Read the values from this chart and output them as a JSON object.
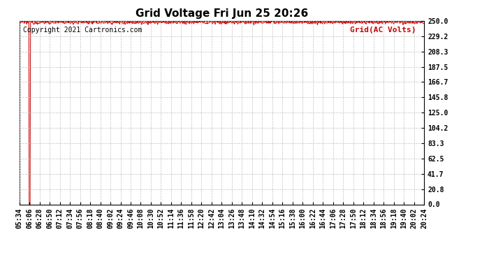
{
  "title": "Grid Voltage Fri Jun 25 20:26",
  "legend_label": "Grid(AC Volts)",
  "copyright": "Copyright 2021 Cartronics.com",
  "line_color": "#cc0000",
  "legend_color": "#cc0000",
  "bg_color": "#ffffff",
  "grid_color": "#bbbbbb",
  "ylim": [
    0.0,
    250.0
  ],
  "yticks": [
    0.0,
    20.8,
    41.7,
    62.5,
    83.3,
    104.2,
    125.0,
    145.8,
    166.7,
    187.5,
    208.3,
    229.2,
    250.0
  ],
  "ytick_labels": [
    "0.0",
    "20.8",
    "41.7",
    "62.5",
    "83.3",
    "104.2",
    "125.0",
    "145.8",
    "166.7",
    "187.5",
    "208.3",
    "229.2",
    "250.0"
  ],
  "xtick_labels": [
    "05:34",
    "06:06",
    "06:28",
    "06:50",
    "07:12",
    "07:34",
    "07:56",
    "08:18",
    "08:40",
    "09:02",
    "09:24",
    "09:46",
    "10:08",
    "10:30",
    "10:52",
    "11:14",
    "11:36",
    "11:58",
    "12:20",
    "12:42",
    "13:04",
    "13:26",
    "13:48",
    "14:10",
    "14:32",
    "14:54",
    "15:16",
    "15:38",
    "16:00",
    "16:22",
    "16:44",
    "17:06",
    "17:28",
    "17:50",
    "18:12",
    "18:34",
    "18:56",
    "19:18",
    "19:40",
    "20:02",
    "20:24"
  ],
  "num_points": 900,
  "signal_mean": 248.0,
  "signal_std": 1.2,
  "drop_index": 22,
  "drop_value": 0.0,
  "title_fontsize": 11,
  "tick_fontsize": 7,
  "legend_fontsize": 8,
  "copyright_fontsize": 7
}
